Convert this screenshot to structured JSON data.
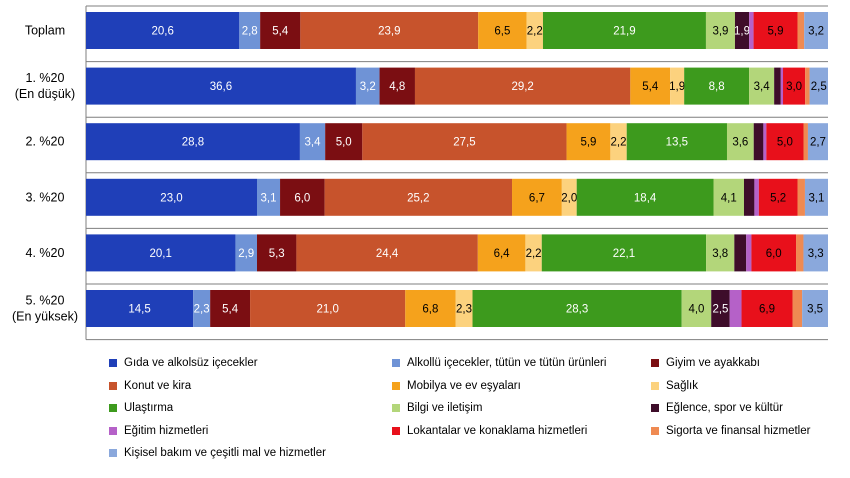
{
  "chart_data": {
    "type": "bar",
    "orientation": "horizontal",
    "stacked": "100%",
    "categories": [
      "Toplam",
      "1. %20\n(En düşük)",
      "2. %20",
      "3. %20",
      "4. %20",
      "5. %20\n(En yüksek)"
    ],
    "series": [
      {
        "name": "Gıda ve alkolsüz içecekler",
        "color": "#1f3fb8",
        "label_color": "#ffffff",
        "values": [
          20.6,
          36.6,
          28.8,
          23.0,
          20.1,
          14.5
        ],
        "labels": [
          "20,6",
          "36,6",
          "28,8",
          "23,0",
          "20,1",
          "14,5"
        ]
      },
      {
        "name": "Alkollü içecekler, tütün ve tütün ürünleri",
        "color": "#6f93d6",
        "label_color": "#ffffff",
        "values": [
          2.8,
          3.2,
          3.4,
          3.1,
          2.9,
          2.3
        ],
        "labels": [
          "2,8",
          "3,2",
          "3,4",
          "3,1",
          "2,9",
          "2,3"
        ]
      },
      {
        "name": "Giyim ve ayakkabı",
        "color": "#7b0e12",
        "label_color": "#ffffff",
        "values": [
          5.4,
          4.8,
          5.0,
          6.0,
          5.3,
          5.4
        ],
        "labels": [
          "5,4",
          "4,8",
          "5,0",
          "6,0",
          "5,3",
          "5,4"
        ]
      },
      {
        "name": "Konut ve kira",
        "color": "#c7532c",
        "label_color": "#ffffff",
        "values": [
          23.9,
          29.2,
          27.5,
          25.2,
          24.4,
          21.0
        ],
        "labels": [
          "23,9",
          "29,2",
          "27,5",
          "25,2",
          "24,4",
          "21,0"
        ]
      },
      {
        "name": "Mobilya ve ev eşyaları",
        "color": "#f5a21c",
        "label_color": "#000000",
        "values": [
          6.5,
          5.4,
          5.9,
          6.7,
          6.4,
          6.8
        ],
        "labels": [
          "6,5",
          "5,4",
          "5,9",
          "6,7",
          "6,4",
          "6,8"
        ]
      },
      {
        "name": "Sağlık",
        "color": "#fcd27e",
        "label_color": "#000000",
        "values": [
          2.2,
          1.9,
          2.2,
          2.0,
          2.2,
          2.3
        ],
        "labels": [
          "2,2",
          "1,9",
          "2,2",
          "2,0",
          "2,2",
          "2,3"
        ]
      },
      {
        "name": "Ulaştırma",
        "color": "#3d9a1d",
        "label_color": "#ffffff",
        "values": [
          21.9,
          8.8,
          13.5,
          18.4,
          22.1,
          28.3
        ],
        "labels": [
          "21,9",
          "8,8",
          "13,5",
          "18,4",
          "22,1",
          "28,3"
        ]
      },
      {
        "name": "Bilgi ve iletişim",
        "color": "#b3d67a",
        "label_color": "#000000",
        "values": [
          3.9,
          3.4,
          3.6,
          4.1,
          3.8,
          4.0
        ],
        "labels": [
          "3,9",
          "3,4",
          "3,6",
          "4,1",
          "3,8",
          "4,0"
        ]
      },
      {
        "name": "Eğlence, spor ve kültür",
        "color": "#3e0d2a",
        "label_color": "#ffffff",
        "values": [
          1.9,
          0.9,
          1.3,
          1.4,
          1.6,
          2.5
        ],
        "labels": [
          "1,9",
          "",
          "",
          "",
          "",
          "2,5"
        ]
      },
      {
        "name": "Eğitim hizmetleri",
        "color": "#b561c8",
        "label_color": "#ffffff",
        "values": [
          0.6,
          0.3,
          0.4,
          0.6,
          0.7,
          1.6
        ],
        "labels": [
          "",
          "",
          "",
          "",
          "",
          ""
        ]
      },
      {
        "name": "Lokantalar ve konaklama hizmetleri",
        "color": "#e8101b",
        "label_color": "#000000",
        "values": [
          5.9,
          3.0,
          5.0,
          5.2,
          6.0,
          6.9
        ],
        "labels": [
          "5,9",
          "3,0",
          "5,0",
          "5,2",
          "6,0",
          "6,9"
        ]
      },
      {
        "name": "Sigorta ve finansal hizmetler",
        "color": "#ef8a52",
        "label_color": "#000000",
        "values": [
          0.9,
          0.6,
          0.6,
          1.0,
          1.0,
          1.3
        ],
        "labels": [
          "",
          "",
          "",
          "",
          "",
          ""
        ]
      },
      {
        "name": "Kişisel bakım ve çeşitli mal ve hizmetler",
        "color": "#8aa8dc",
        "label_color": "#000000",
        "values": [
          3.2,
          2.5,
          2.7,
          3.1,
          3.3,
          3.5
        ],
        "labels": [
          "3,2",
          "2,5",
          "2,7",
          "3,1",
          "3,3",
          "3,5"
        ]
      }
    ],
    "xlim": [
      0,
      100
    ],
    "grid": false,
    "legend_position": "bottom"
  }
}
